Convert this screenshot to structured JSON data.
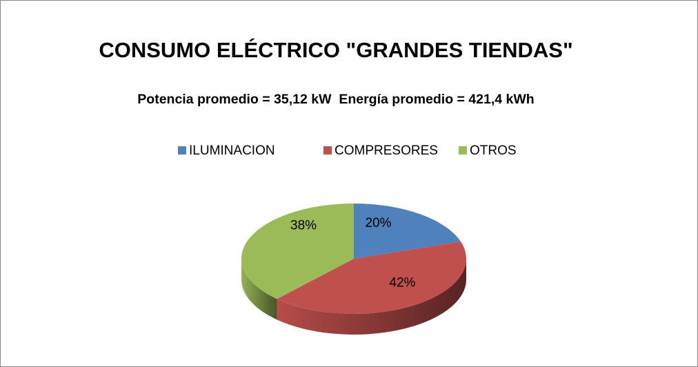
{
  "chart_data": {
    "type": "pie",
    "title": "CONSUMO ELÉCTRICO \"GRANDES TIENDAS\"",
    "subtitle": "Potencia promedio = 35,12 kW  Energía promedio = 421,4 kWh",
    "categories": [
      "ILUMINACION",
      "COMPRESORES",
      "OTROS"
    ],
    "values": [
      20,
      42,
      38
    ],
    "value_labels": [
      "20%",
      "42%",
      "38%"
    ],
    "colors": [
      "#4f81bd",
      "#c0504d",
      "#9bbb59"
    ],
    "legend": "top"
  }
}
